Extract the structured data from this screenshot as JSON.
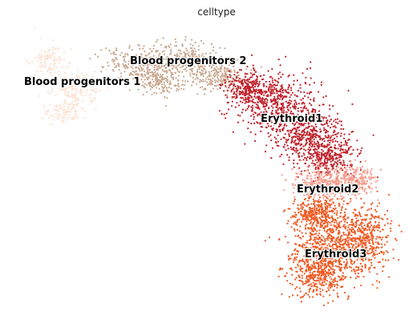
{
  "chart_data": {
    "type": "scatter",
    "title": "celltype",
    "xlabel": "",
    "ylabel": "",
    "grid": false,
    "axes_visible": false,
    "legend": "on data",
    "series": [
      {
        "name": "Blood progenitors 1",
        "color": "#fde0d0"
      },
      {
        "name": "Blood progenitors 2",
        "color": "#c9a890"
      },
      {
        "name": "Erythroid1",
        "color": "#c0202a"
      },
      {
        "name": "Erythroid2",
        "color": "#f79b8b"
      },
      {
        "name": "Erythroid3",
        "color": "#ef5a23"
      }
    ]
  }
}
